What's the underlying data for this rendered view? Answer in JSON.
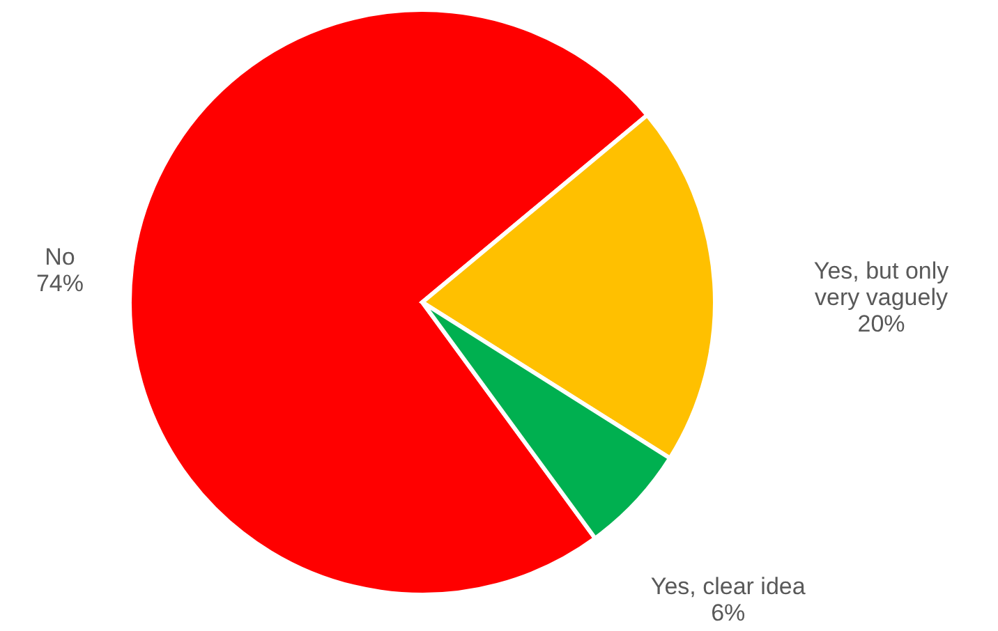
{
  "chart_data": {
    "type": "pie",
    "categories": [
      "No",
      "Yes, but only very vaguely",
      "Yes, clear idea"
    ],
    "values": [
      74,
      20,
      6
    ],
    "value_labels": [
      "74%",
      "20%",
      "6%"
    ],
    "colors": [
      "#ff0000",
      "#ffc000",
      "#00b050"
    ]
  }
}
